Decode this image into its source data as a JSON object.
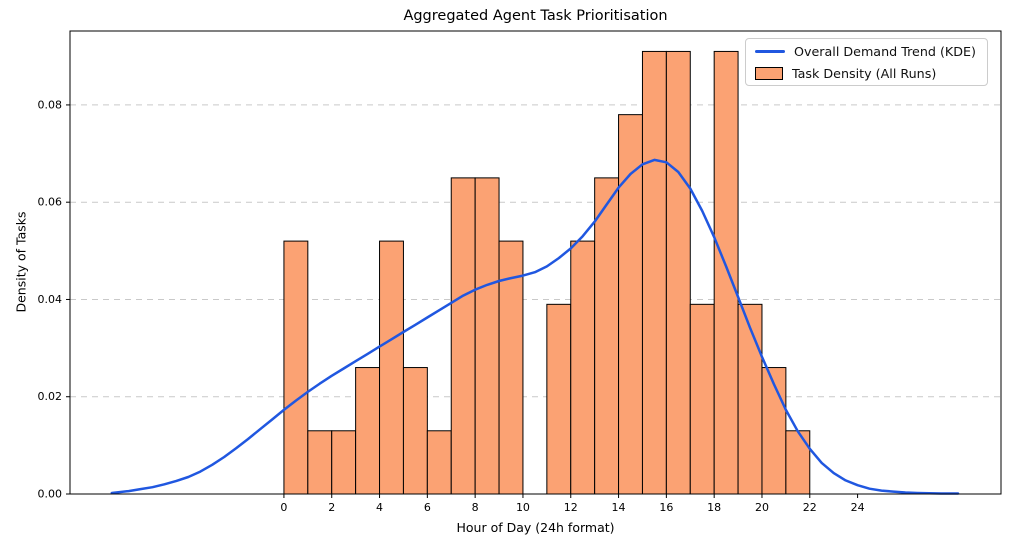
{
  "chart_data": {
    "type": "bar",
    "subtype": "histogram_with_kde_overlay",
    "title": "Aggregated Agent Task Prioritisation",
    "xlabel": "Hour of Day (24h format)",
    "ylabel": "Density of Tasks",
    "xlim": [
      -8.95,
      30.0
    ],
    "ylim": [
      0,
      0.0952
    ],
    "grid": {
      "axis": "y",
      "style": "dashed",
      "color": "#c9c9c9"
    },
    "xticks": [
      0,
      2,
      4,
      6,
      8,
      10,
      12,
      14,
      16,
      18,
      20,
      22,
      24
    ],
    "yticks": [
      {
        "v": 0.0,
        "label": "0.00"
      },
      {
        "v": 0.02,
        "label": "0.02"
      },
      {
        "v": 0.04,
        "label": "0.04"
      },
      {
        "v": 0.06,
        "label": "0.06"
      },
      {
        "v": 0.08,
        "label": "0.08"
      }
    ],
    "histogram": {
      "name": "Task Density (All Runs)",
      "color": "#fba273",
      "edge_color": "#000000",
      "bin_start": 0,
      "bin_width": 1,
      "bin_edges": [
        0,
        1,
        2,
        3,
        4,
        5,
        6,
        7,
        8,
        9,
        10,
        11,
        12,
        13,
        14,
        15,
        16,
        17,
        18,
        19,
        20,
        21,
        22
      ],
      "values": [
        0.052,
        0.013,
        0.013,
        0.026,
        0.052,
        0.026,
        0.013,
        0.065,
        0.065,
        0.052,
        0.0,
        0.039,
        0.052,
        0.065,
        0.078,
        0.091,
        0.091,
        0.039,
        0.091,
        0.039,
        0.026,
        0.013
      ],
      "implied_counts_of_77": [
        4,
        1,
        1,
        2,
        4,
        2,
        1,
        5,
        5,
        4,
        0,
        3,
        4,
        5,
        6,
        7,
        7,
        3,
        7,
        3,
        2,
        1
      ]
    },
    "kde": {
      "name": "Overall Demand Trend (KDE)",
      "color": "#2057e0",
      "line_width": 2.5,
      "peak": {
        "hour": 15.3,
        "density": 0.0685
      },
      "points": [
        [
          -7.2,
          0.0002
        ],
        [
          -6.5,
          0.0006
        ],
        [
          -6.0,
          0.001
        ],
        [
          -5.5,
          0.0014
        ],
        [
          -5.0,
          0.002
        ],
        [
          -4.5,
          0.0027
        ],
        [
          -4.0,
          0.0035
        ],
        [
          -3.5,
          0.0046
        ],
        [
          -3.0,
          0.006
        ],
        [
          -2.5,
          0.0076
        ],
        [
          -2.0,
          0.0094
        ],
        [
          -1.5,
          0.0113
        ],
        [
          -1.0,
          0.0133
        ],
        [
          -0.5,
          0.0153
        ],
        [
          0.0,
          0.0173
        ],
        [
          0.5,
          0.0192
        ],
        [
          1.0,
          0.021
        ],
        [
          1.5,
          0.0227
        ],
        [
          2.0,
          0.0243
        ],
        [
          2.5,
          0.0258
        ],
        [
          3.0,
          0.0273
        ],
        [
          3.5,
          0.0288
        ],
        [
          4.0,
          0.0303
        ],
        [
          4.5,
          0.0318
        ],
        [
          5.0,
          0.0333
        ],
        [
          5.5,
          0.0348
        ],
        [
          6.0,
          0.0363
        ],
        [
          6.5,
          0.0378
        ],
        [
          7.0,
          0.0393
        ],
        [
          7.5,
          0.0408
        ],
        [
          8.0,
          0.042
        ],
        [
          8.5,
          0.043
        ],
        [
          9.0,
          0.0438
        ],
        [
          9.5,
          0.0444
        ],
        [
          10.0,
          0.0449
        ],
        [
          10.5,
          0.0456
        ],
        [
          11.0,
          0.0468
        ],
        [
          11.5,
          0.0485
        ],
        [
          12.0,
          0.0505
        ],
        [
          12.5,
          0.053
        ],
        [
          13.0,
          0.056
        ],
        [
          13.5,
          0.0595
        ],
        [
          14.0,
          0.063
        ],
        [
          14.5,
          0.0658
        ],
        [
          15.0,
          0.0678
        ],
        [
          15.5,
          0.0687
        ],
        [
          16.0,
          0.0682
        ],
        [
          16.5,
          0.0662
        ],
        [
          17.0,
          0.0628
        ],
        [
          17.5,
          0.0582
        ],
        [
          18.0,
          0.0528
        ],
        [
          18.5,
          0.0468
        ],
        [
          19.0,
          0.0405
        ],
        [
          19.5,
          0.0342
        ],
        [
          20.0,
          0.0282
        ],
        [
          20.5,
          0.0226
        ],
        [
          21.0,
          0.0173
        ],
        [
          21.5,
          0.0129
        ],
        [
          22.0,
          0.0093
        ],
        [
          22.5,
          0.0064
        ],
        [
          23.0,
          0.0043
        ],
        [
          23.5,
          0.0028
        ],
        [
          24.0,
          0.0018
        ],
        [
          24.5,
          0.0011
        ],
        [
          25.0,
          0.0007
        ],
        [
          25.5,
          0.0005
        ],
        [
          26.0,
          0.0003
        ],
        [
          26.5,
          0.0002
        ],
        [
          27.0,
          0.00015
        ],
        [
          27.5,
          0.0001
        ],
        [
          28.0,
          0.0001
        ],
        [
          28.2,
          0.0001
        ]
      ]
    },
    "legend": {
      "position": "upper right",
      "entries": [
        "Overall Demand Trend (KDE)",
        "Task Density (All Runs)"
      ]
    }
  }
}
